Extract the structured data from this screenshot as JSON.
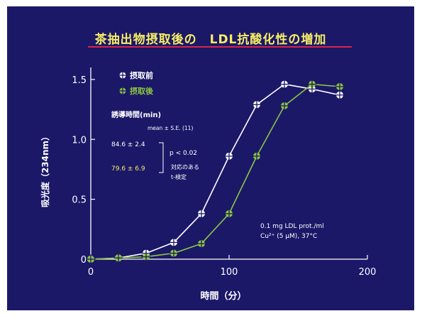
{
  "title": "茶抽出物摂取後の　LDL抗酸化性の増加",
  "chart_data": {
    "type": "line",
    "xlabel": "時間（分）",
    "ylabel": "吸光度（234nm）",
    "xlim": [
      0,
      200
    ],
    "ylim": [
      0,
      1.6
    ],
    "xticks": [
      0,
      100,
      200
    ],
    "yticks": [
      0,
      0.5,
      1.0,
      1.5
    ],
    "ytick_labels": [
      "0",
      "0.5",
      "1.0",
      "1.5"
    ],
    "grid": false,
    "legend_position": "top-left",
    "x": [
      0,
      20,
      40,
      60,
      80,
      100,
      120,
      140,
      160,
      180
    ],
    "series": [
      {
        "name": "摂取前",
        "color": "#ffffff",
        "values": [
          0.0,
          0.01,
          0.05,
          0.14,
          0.38,
          0.86,
          1.29,
          1.46,
          1.42,
          1.37
        ]
      },
      {
        "name": "摂取後",
        "color": "#8cc63f",
        "values": [
          0.0,
          0.01,
          0.02,
          0.05,
          0.13,
          0.38,
          0.86,
          1.28,
          1.46,
          1.44
        ]
      }
    ],
    "annotations": {
      "lag_title": "誘導時間(min)",
      "lag_subtitle": "mean ± S.E. (11)",
      "before_value": "84.6 ± 2.4",
      "after_value": "79.6 ± 6.9",
      "pvalue": "p < 0.02",
      "test_line1": "対応のある",
      "test_line2": "t-検定",
      "conditions_line1": "0.1 mg LDL prot./ml",
      "conditions_line2": "Cu²⁺ (5 μM), 37°C"
    }
  }
}
